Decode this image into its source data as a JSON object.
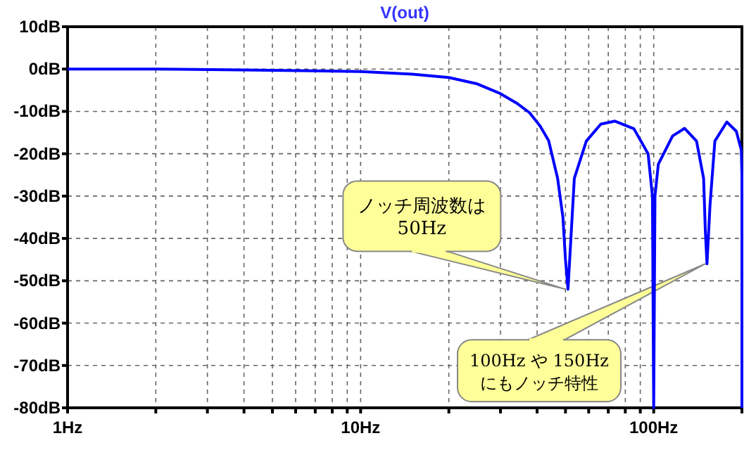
{
  "chart_data": {
    "type": "line",
    "title": "V(out)",
    "log": "x",
    "x": [
      1,
      2,
      4,
      7,
      10,
      15,
      20,
      25,
      30,
      34,
      37.7,
      41,
      43.8,
      47,
      49,
      50,
      51,
      53.6,
      58.9,
      66,
      73.8,
      85.6,
      95.7,
      99,
      100,
      101,
      103.7,
      116,
      127.5,
      140,
      148,
      150,
      152,
      155.7,
      161.7,
      177.6,
      191.4,
      199,
      200,
      200
    ],
    "series": [
      {
        "color": "#0000ff",
        "values": [
          0,
          0,
          -0.2,
          -0.4,
          -0.6,
          -1.2,
          -2,
          -3.5,
          -5.8,
          -8,
          -10.3,
          -13.5,
          -16.9,
          -25.8,
          -35,
          -45,
          -52,
          -25.8,
          -17,
          -13,
          -12.3,
          -14.1,
          -20,
          -30,
          -80,
          -30,
          -22.5,
          -15.8,
          -14,
          -17,
          -25.8,
          -38,
          -46,
          -32,
          -17,
          -12.5,
          -14.7,
          -19.1,
          -25,
          -80
        ]
      }
    ],
    "xlim": [
      1,
      200
    ],
    "xticks": [
      {
        "value": 1,
        "label": "1Hz"
      },
      {
        "value": 2,
        "label": null
      },
      {
        "value": 3,
        "label": null
      },
      {
        "value": 4,
        "label": null
      },
      {
        "value": 5,
        "label": null
      },
      {
        "value": 6,
        "label": null
      },
      {
        "value": 7,
        "label": null
      },
      {
        "value": 8,
        "label": null
      },
      {
        "value": 9,
        "label": null
      },
      {
        "value": 10,
        "label": "10Hz"
      },
      {
        "value": 20,
        "label": null
      },
      {
        "value": 30,
        "label": null
      },
      {
        "value": 40,
        "label": null
      },
      {
        "value": 50,
        "label": null
      },
      {
        "value": 60,
        "label": null
      },
      {
        "value": 70,
        "label": null
      },
      {
        "value": 80,
        "label": null
      },
      {
        "value": 90,
        "label": null
      },
      {
        "value": 100,
        "label": "100Hz"
      },
      {
        "value": 200,
        "label": null
      }
    ],
    "ylim": [
      -80,
      10
    ],
    "yticks": [
      {
        "value": 10,
        "label": "10dB"
      },
      {
        "value": 0,
        "label": "0dB"
      },
      {
        "value": -10,
        "label": "-10dB"
      },
      {
        "value": -20,
        "label": "-20dB"
      },
      {
        "value": -30,
        "label": "-30dB"
      },
      {
        "value": -40,
        "label": "-40dB"
      },
      {
        "value": -50,
        "label": "-50dB"
      },
      {
        "value": -60,
        "label": "-60dB"
      },
      {
        "value": -70,
        "label": "-70dB"
      },
      {
        "value": -80,
        "label": "-80dB"
      }
    ],
    "grid": true,
    "line_style": "solid",
    "marker": "none",
    "annotations": [
      {
        "text": "ノッチ周波数は\n50Hz",
        "x": 50,
        "y": -52
      },
      {
        "text": "100Hz や 150Hz\nにもノッチ特性",
        "x": 150,
        "y": -46
      }
    ]
  }
}
